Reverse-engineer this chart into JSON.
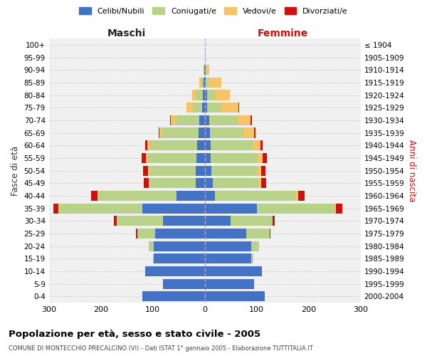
{
  "age_groups": [
    "0-4",
    "5-9",
    "10-14",
    "15-19",
    "20-24",
    "25-29",
    "30-34",
    "35-39",
    "40-44",
    "45-49",
    "50-54",
    "55-59",
    "60-64",
    "65-69",
    "70-74",
    "75-79",
    "80-84",
    "85-89",
    "90-94",
    "95-99",
    "100+"
  ],
  "birth_years": [
    "2000-2004",
    "1995-1999",
    "1990-1994",
    "1985-1989",
    "1980-1984",
    "1975-1979",
    "1970-1974",
    "1965-1969",
    "1960-1964",
    "1955-1959",
    "1950-1954",
    "1945-1949",
    "1940-1944",
    "1935-1939",
    "1930-1934",
    "1925-1929",
    "1920-1924",
    "1915-1919",
    "1910-1914",
    "1905-1909",
    "≤ 1904"
  ],
  "colors": {
    "celibe": "#4472c4",
    "coniugato": "#b8d28a",
    "vedovo": "#f5c468",
    "divorziato": "#cc1111"
  },
  "maschi": {
    "celibe": [
      120,
      80,
      115,
      98,
      98,
      95,
      80,
      120,
      55,
      18,
      17,
      16,
      15,
      12,
      10,
      5,
      4,
      2,
      1,
      0,
      0
    ],
    "coniugato": [
      0,
      0,
      0,
      2,
      10,
      35,
      90,
      160,
      150,
      88,
      90,
      95,
      90,
      70,
      45,
      18,
      12,
      5,
      1,
      0,
      0
    ],
    "vedovo": [
      0,
      0,
      0,
      0,
      0,
      0,
      0,
      2,
      2,
      2,
      2,
      2,
      5,
      5,
      10,
      12,
      8,
      4,
      0,
      0,
      0
    ],
    "divorziato": [
      0,
      0,
      0,
      0,
      0,
      2,
      5,
      10,
      12,
      10,
      10,
      8,
      5,
      2,
      2,
      0,
      0,
      0,
      0,
      0,
      0
    ]
  },
  "femmine": {
    "nubile": [
      115,
      95,
      110,
      90,
      90,
      80,
      50,
      100,
      20,
      15,
      13,
      12,
      12,
      10,
      8,
      5,
      4,
      2,
      2,
      1,
      0
    ],
    "coniugata": [
      0,
      0,
      0,
      3,
      15,
      45,
      80,
      150,
      155,
      88,
      88,
      90,
      80,
      65,
      55,
      25,
      15,
      5,
      1,
      0,
      0
    ],
    "vedova": [
      0,
      0,
      0,
      0,
      0,
      0,
      0,
      3,
      5,
      5,
      8,
      10,
      15,
      20,
      25,
      35,
      30,
      25,
      5,
      1,
      0
    ],
    "divorziata": [
      0,
      0,
      0,
      0,
      0,
      2,
      5,
      12,
      12,
      10,
      8,
      8,
      5,
      3,
      3,
      1,
      0,
      0,
      0,
      0,
      0
    ]
  },
  "title": "Popolazione per età, sesso e stato civile - 2005",
  "subtitle": "COMUNE DI MONTECCHIO PRECALCINO (VI) - Dati ISTAT 1° gennaio 2005 - Elaborazione TUTTITALIA.IT",
  "xlabel_maschi": "Maschi",
  "xlabel_femmine": "Femmine",
  "ylabel_left": "Fasce di età",
  "ylabel_right": "Anni di nascita",
  "xlim": 300,
  "background_color": "#ffffff",
  "grid_color": "#cccccc",
  "legend_labels": [
    "Celibi/Nubili",
    "Coniugati/e",
    "Vedovi/e",
    "Divorziati/e"
  ]
}
